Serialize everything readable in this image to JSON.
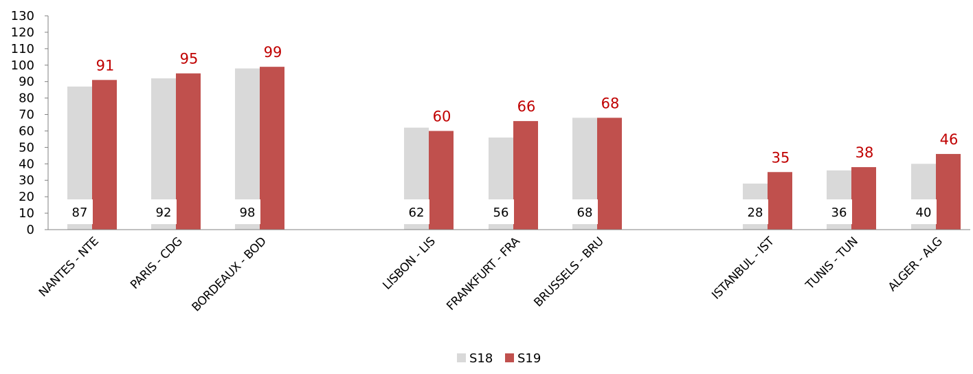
{
  "chart_data": {
    "type": "bar",
    "categories": [
      "NANTES - NTE",
      "PARIS - CDG",
      "BORDEAUX - BOD",
      "LISBON - LIS",
      "FRANKFURT - FRA",
      "BRUSSELS - BRU",
      "ISTANBUL - IST",
      "TUNIS - TUN",
      "ALGER - ALG"
    ],
    "series": [
      {
        "name": "S18",
        "values": [
          87,
          92,
          98,
          62,
          56,
          68,
          28,
          36,
          40
        ],
        "color": "#d9d9d9"
      },
      {
        "name": "S19",
        "values": [
          91,
          95,
          99,
          60,
          66,
          68,
          35,
          38,
          46
        ],
        "color": "#c0504d"
      }
    ],
    "groups": [
      [
        0,
        1,
        2
      ],
      [
        3,
        4,
        5
      ],
      [
        6,
        7,
        8
      ]
    ],
    "ylim": [
      0,
      130
    ],
    "yticks": [
      0,
      10,
      20,
      30,
      40,
      50,
      60,
      70,
      80,
      90,
      100,
      110,
      120,
      130
    ],
    "data_label_colors": {
      "S18": "#000000",
      "S19": "#c00000"
    },
    "legend_position": "bottom-center",
    "grid": false,
    "title": "",
    "xlabel": "",
    "ylabel": ""
  }
}
